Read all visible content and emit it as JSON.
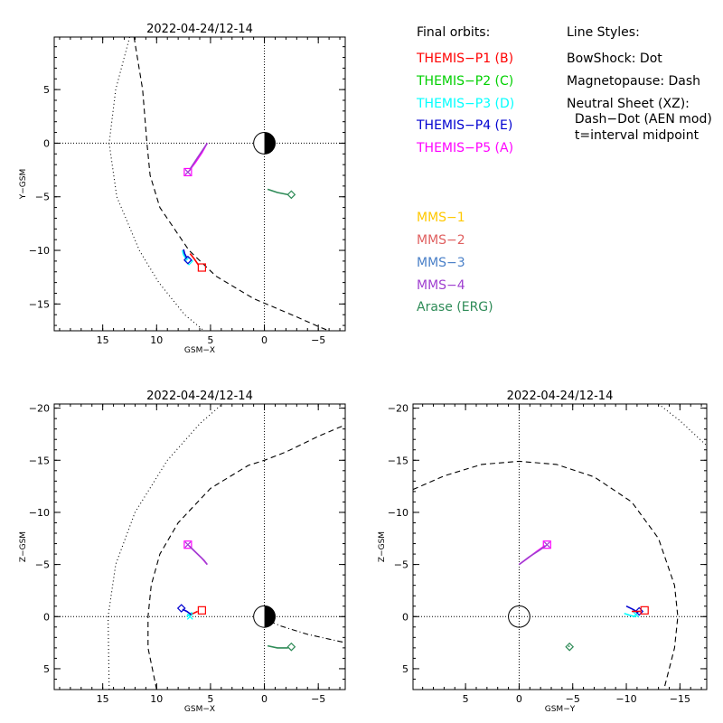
{
  "colors": {
    "themis_p1": "#ff0000",
    "themis_p2": "#00d000",
    "themis_p3": "#00ffff",
    "themis_p4": "#0000d0",
    "themis_p5": "#ff00ff",
    "mms1": "#ffc800",
    "mms2": "#e06060",
    "mms3": "#4a80c8",
    "mms4": "#a040d0",
    "arase": "#2e8b57",
    "axes": "#000000"
  },
  "legend": {
    "final_orbits_title": "Final orbits:",
    "themis": [
      {
        "label": "THEMIS−P1 (B)",
        "color_key": "themis_p1"
      },
      {
        "label": "THEMIS−P2 (C)",
        "color_key": "themis_p2"
      },
      {
        "label": "THEMIS−P3 (D)",
        "color_key": "themis_p3"
      },
      {
        "label": "THEMIS−P4 (E)",
        "color_key": "themis_p4"
      },
      {
        "label": "THEMIS−P5 (A)",
        "color_key": "themis_p5"
      }
    ],
    "line_styles_title": "Line Styles:",
    "line_styles": [
      "BowShock: Dot",
      "Magnetopause: Dash",
      "Neutral Sheet (XZ):",
      "  Dash−Dot (AEN mod)",
      "  t=interval midpoint"
    ],
    "missions": [
      {
        "label": "MMS−1",
        "color_key": "mms1"
      },
      {
        "label": "MMS−2",
        "color_key": "mms2"
      },
      {
        "label": "MMS−3",
        "color_key": "mms3"
      },
      {
        "label": "MMS−4",
        "color_key": "mms4"
      },
      {
        "label": "Arase (ERG)",
        "color_key": "arase"
      }
    ]
  },
  "chart_data": [
    {
      "type": "line",
      "title": "2022-04-24/12-14",
      "xlabel": "GSM−X",
      "ylabel": "Y−GSM",
      "xlim": [
        19.5,
        -7.5
      ],
      "ylim": [
        9.9,
        -17.5
      ],
      "xticks": [
        15,
        10,
        5,
        0,
        -5
      ],
      "xtick_labels": [
        "15",
        "10",
        "5",
        "0",
        "−5"
      ],
      "yticks": [
        5,
        0,
        -5,
        -10,
        -15
      ],
      "ytick_labels": [
        "5",
        "0",
        "−5",
        "−10",
        "−15"
      ],
      "earth": "half_shaded",
      "series": [
        {
          "kind": "bowshock",
          "style": "dot",
          "points": [
            [
              12.5,
              9.9
            ],
            [
              13.8,
              5
            ],
            [
              14.4,
              0
            ],
            [
              13.7,
              -5
            ],
            [
              11.6,
              -10
            ],
            [
              9.8,
              -13
            ],
            [
              7.4,
              -16
            ],
            [
              5.6,
              -17.5
            ]
          ]
        },
        {
          "kind": "magnetopause",
          "style": "dash",
          "points": [
            [
              12.1,
              9.9
            ],
            [
              11.3,
              5
            ],
            [
              10.9,
              0
            ],
            [
              10.6,
              -3
            ],
            [
              9.7,
              -6
            ],
            [
              7.0,
              -10
            ],
            [
              4.5,
              -12.4
            ],
            [
              1.0,
              -14.5
            ],
            [
              -3.0,
              -16.2
            ],
            [
              -5.0,
              -17.1
            ],
            [
              -6.0,
              -17.5
            ]
          ]
        },
        {
          "kind": "orbit",
          "color_key": "themis_p1",
          "points": [
            [
              6.1,
              -11.4
            ],
            [
              6.5,
              -10.8
            ],
            [
              6.9,
              -10.3
            ]
          ],
          "marker": "square",
          "marker_at": [
            5.8,
            -11.6
          ]
        },
        {
          "kind": "orbit",
          "color_key": "themis_p3",
          "points": [
            [
              7.2,
              -10.9
            ],
            [
              7.5,
              -10.4
            ],
            [
              7.6,
              -10.0
            ]
          ],
          "marker": "diamond",
          "marker_at": [
            7.0,
            -11.0
          ]
        },
        {
          "kind": "orbit",
          "color_key": "themis_p4",
          "points": [
            [
              7.2,
              -10.7
            ],
            [
              7.4,
              -10.3
            ],
            [
              7.5,
              -9.9
            ]
          ],
          "marker": "diamond",
          "marker_at": [
            7.1,
            -10.9
          ]
        },
        {
          "kind": "orbit",
          "color_key": "themis_p5",
          "points": [
            [
              7.0,
              -2.6
            ],
            [
              6.4,
              -1.8
            ],
            [
              5.8,
              -0.9
            ],
            [
              5.3,
              0.0
            ]
          ],
          "marker": "square",
          "marker_at": [
            7.1,
            -2.7
          ]
        },
        {
          "kind": "orbit",
          "color_key": "mms4",
          "points": [
            [
              6.9,
              -2.4
            ],
            [
              6.3,
              -1.5
            ],
            [
              5.7,
              -0.6
            ],
            [
              5.3,
              0.0
            ]
          ],
          "marker": "x",
          "marker_at": [
            7.1,
            -2.7
          ]
        },
        {
          "kind": "orbit",
          "color_key": "arase",
          "points": [
            [
              -0.3,
              -4.3
            ],
            [
              -1.2,
              -4.6
            ],
            [
              -2.2,
              -4.8
            ]
          ],
          "marker": "diamond",
          "marker_at": [
            -2.5,
            -4.8
          ]
        }
      ]
    },
    {
      "type": "line",
      "title": "2022-04-24/12-14",
      "xlabel": "GSM−X",
      "ylabel": "Z−GSM",
      "xlim": [
        19.5,
        -7.5
      ],
      "ylim": [
        -20.4,
        7.0
      ],
      "xticks": [
        15,
        10,
        5,
        0,
        -5
      ],
      "xtick_labels": [
        "15",
        "10",
        "5",
        "0",
        "−5"
      ],
      "yticks": [
        5,
        0,
        -5,
        -10,
        -15,
        -20
      ],
      "ytick_labels": [
        "5",
        "0",
        "−5",
        "−10",
        "−15",
        "−20"
      ],
      "earth": "half_shaded",
      "series": [
        {
          "kind": "bowshock",
          "style": "dot",
          "points": [
            [
              14.4,
              7.0
            ],
            [
              14.5,
              0
            ],
            [
              13.8,
              -5
            ],
            [
              12.0,
              -10
            ],
            [
              9.0,
              -15
            ],
            [
              6.0,
              -18.5
            ],
            [
              3.9,
              -20.4
            ]
          ]
        },
        {
          "kind": "magnetopause",
          "style": "dash",
          "points": [
            [
              10.0,
              7.0
            ],
            [
              10.8,
              3
            ],
            [
              10.8,
              0
            ],
            [
              10.5,
              -3
            ],
            [
              9.7,
              -6
            ],
            [
              8.0,
              -9
            ],
            [
              5.0,
              -12.3
            ],
            [
              1.5,
              -14.5
            ],
            [
              0.0,
              -15.0
            ],
            [
              -2.0,
              -15.8
            ],
            [
              -5.0,
              -17.3
            ],
            [
              -7.5,
              -18.4
            ]
          ]
        },
        {
          "kind": "neutral_sheet",
          "style": "dashdot",
          "points": [
            [
              0.5,
              0.0
            ],
            [
              -1.5,
              0.9
            ],
            [
              -4.0,
              1.7
            ],
            [
              -7.5,
              2.5
            ]
          ]
        },
        {
          "kind": "orbit",
          "color_key": "themis_p5",
          "points": [
            [
              7.0,
              -6.8
            ],
            [
              6.4,
              -6.2
            ],
            [
              5.8,
              -5.6
            ],
            [
              5.3,
              -5.0
            ]
          ],
          "marker": "square",
          "marker_at": [
            7.1,
            -6.9
          ]
        },
        {
          "kind": "orbit",
          "color_key": "mms4",
          "points": [
            [
              6.9,
              -6.7
            ],
            [
              6.2,
              -6.0
            ],
            [
              5.6,
              -5.4
            ],
            [
              5.3,
              -5.0
            ]
          ],
          "marker": "x",
          "marker_at": [
            7.1,
            -6.9
          ]
        },
        {
          "kind": "orbit",
          "color_key": "themis_p1",
          "points": [
            [
              6.2,
              -0.5
            ],
            [
              6.6,
              -0.3
            ],
            [
              6.9,
              -0.1
            ]
          ],
          "marker": "square",
          "marker_at": [
            5.8,
            -0.6
          ]
        },
        {
          "kind": "orbit",
          "color_key": "themis_p3",
          "points": [
            [
              7.2,
              0.0
            ],
            [
              7.0,
              -0.2
            ],
            [
              6.7,
              -0.4
            ]
          ],
          "marker": "x",
          "marker_at": [
            6.9,
            0.0
          ]
        },
        {
          "kind": "orbit",
          "color_key": "themis_p4",
          "points": [
            [
              7.6,
              -0.7
            ],
            [
              7.2,
              -0.5
            ],
            [
              6.8,
              -0.2
            ]
          ],
          "marker": "diamond",
          "marker_at": [
            7.7,
            -0.8
          ]
        },
        {
          "kind": "orbit",
          "color_key": "arase",
          "points": [
            [
              -0.3,
              2.8
            ],
            [
              -1.2,
              3.0
            ],
            [
              -2.2,
              3.0
            ]
          ],
          "marker": "diamond",
          "marker_at": [
            -2.5,
            2.9
          ]
        }
      ]
    },
    {
      "type": "line",
      "title": "2022-04-24/12-14",
      "xlabel": "GSM−Y",
      "ylabel": "Z−GSM",
      "xlim": [
        9.9,
        -17.5
      ],
      "ylim": [
        -20.4,
        7.0
      ],
      "xticks": [
        5,
        0,
        -5,
        -10,
        -15
      ],
      "xtick_labels": [
        "5",
        "0",
        "−5",
        "−10",
        "−15"
      ],
      "yticks": [
        5,
        0,
        -5,
        -10,
        -15,
        -20
      ],
      "ytick_labels": [
        "5",
        "0",
        "−5",
        "−10",
        "−15",
        "−20"
      ],
      "earth": "outline",
      "series": [
        {
          "kind": "bowshock",
          "style": "dot",
          "points": [
            [
              -13.0,
              -20.4
            ],
            [
              -15.0,
              -18.8
            ],
            [
              -17.5,
              -16.4
            ]
          ]
        },
        {
          "kind": "magnetopause",
          "style": "dash",
          "points": [
            [
              9.9,
              -12.2
            ],
            [
              7.0,
              -13.5
            ],
            [
              3.5,
              -14.6
            ],
            [
              0.0,
              -14.9
            ],
            [
              -3.5,
              -14.6
            ],
            [
              -7.0,
              -13.4
            ],
            [
              -10.5,
              -11.0
            ],
            [
              -13.0,
              -7.5
            ],
            [
              -14.5,
              -3.0
            ],
            [
              -14.8,
              0.0
            ],
            [
              -14.5,
              3.0
            ],
            [
              -13.5,
              7.0
            ]
          ]
        },
        {
          "kind": "orbit",
          "color_key": "themis_p5",
          "points": [
            [
              0.0,
              -5.0
            ],
            [
              -0.8,
              -5.6
            ],
            [
              -1.7,
              -6.3
            ],
            [
              -2.4,
              -6.8
            ]
          ],
          "marker": "square",
          "marker_at": [
            -2.6,
            -6.9
          ]
        },
        {
          "kind": "orbit",
          "color_key": "mms4",
          "points": [
            [
              0.0,
              -5.0
            ],
            [
              -0.9,
              -5.7
            ],
            [
              -1.8,
              -6.3
            ],
            [
              -2.5,
              -6.8
            ]
          ],
          "marker": "x",
          "marker_at": [
            -2.6,
            -6.9
          ]
        },
        {
          "kind": "orbit",
          "color_key": "themis_p3",
          "points": [
            [
              -9.8,
              -0.3
            ],
            [
              -10.4,
              -0.1
            ],
            [
              -10.9,
              0.0
            ]
          ],
          "marker": "x",
          "marker_at": [
            -10.9,
            -0.2
          ]
        },
        {
          "kind": "orbit",
          "color_key": "themis_p4",
          "points": [
            [
              -10.0,
              -1.0
            ],
            [
              -10.6,
              -0.7
            ],
            [
              -11.1,
              -0.4
            ]
          ],
          "marker": "diamond",
          "marker_at": [
            -11.2,
            -0.5
          ]
        },
        {
          "kind": "orbit",
          "color_key": "themis_p1",
          "points": [
            [
              -10.5,
              -0.5
            ],
            [
              -11.0,
              -0.5
            ],
            [
              -11.3,
              -0.5
            ]
          ],
          "marker": "square",
          "marker_at": [
            -11.7,
            -0.6
          ]
        },
        {
          "kind": "orbit",
          "color_key": "arase",
          "points": [
            [
              -4.6,
              2.8
            ],
            [
              -4.7,
              2.9
            ]
          ],
          "marker": "diamond",
          "marker_at": [
            -4.7,
            2.9
          ]
        }
      ]
    }
  ]
}
